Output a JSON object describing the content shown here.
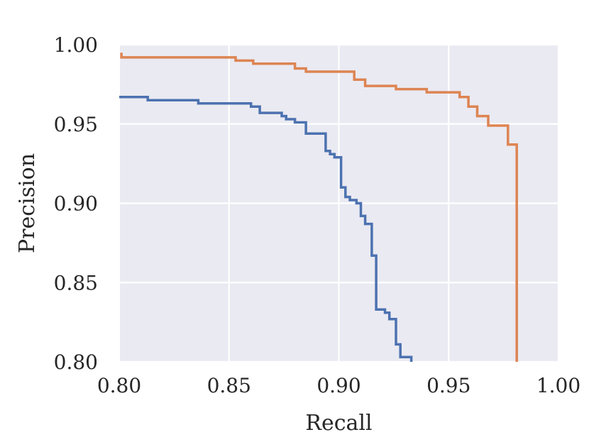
{
  "chart_data": {
    "type": "line",
    "title": "",
    "xlabel": "Recall",
    "ylabel": "Precision",
    "xlim": [
      0.8,
      1.0
    ],
    "ylim": [
      0.8,
      1.0
    ],
    "xticks": [
      "0.80",
      "0.85",
      "0.90",
      "0.95",
      "1.00"
    ],
    "yticks": [
      "0.80",
      "0.85",
      "0.90",
      "0.95",
      "1.00"
    ],
    "grid": true,
    "background": "#EAEAF2",
    "gridColor": "#FFFFFF",
    "legend": "none",
    "series": [
      {
        "color": "#4C72B0",
        "x": [
          0.8,
          0.813,
          0.813,
          0.836,
          0.836,
          0.86,
          0.86,
          0.864,
          0.864,
          0.874,
          0.874,
          0.876,
          0.876,
          0.88,
          0.88,
          0.885,
          0.885,
          0.894,
          0.894,
          0.896,
          0.896,
          0.898,
          0.898,
          0.901,
          0.901,
          0.903,
          0.903,
          0.905,
          0.905,
          0.908,
          0.908,
          0.91,
          0.91,
          0.912,
          0.912,
          0.915,
          0.915,
          0.917,
          0.917,
          0.921,
          0.921,
          0.923,
          0.923,
          0.926,
          0.926,
          0.928,
          0.928,
          0.933,
          0.933
        ],
        "y": [
          0.967,
          0.967,
          0.965,
          0.965,
          0.963,
          0.963,
          0.961,
          0.961,
          0.957,
          0.957,
          0.955,
          0.955,
          0.953,
          0.953,
          0.951,
          0.951,
          0.944,
          0.944,
          0.933,
          0.933,
          0.931,
          0.931,
          0.929,
          0.929,
          0.91,
          0.91,
          0.904,
          0.904,
          0.902,
          0.902,
          0.9,
          0.9,
          0.892,
          0.892,
          0.887,
          0.887,
          0.867,
          0.867,
          0.833,
          0.833,
          0.831,
          0.831,
          0.827,
          0.827,
          0.811,
          0.811,
          0.803,
          0.803,
          0.8
        ]
      },
      {
        "color": "#DD8452",
        "x": [
          0.801,
          0.801,
          0.853,
          0.853,
          0.861,
          0.861,
          0.88,
          0.88,
          0.885,
          0.885,
          0.907,
          0.907,
          0.912,
          0.912,
          0.926,
          0.926,
          0.94,
          0.94,
          0.955,
          0.955,
          0.959,
          0.959,
          0.963,
          0.963,
          0.968,
          0.968,
          0.977,
          0.977,
          0.981,
          0.981
        ],
        "y": [
          0.995,
          0.992,
          0.992,
          0.99,
          0.99,
          0.988,
          0.988,
          0.985,
          0.985,
          0.983,
          0.983,
          0.978,
          0.978,
          0.974,
          0.974,
          0.972,
          0.972,
          0.97,
          0.97,
          0.967,
          0.967,
          0.961,
          0.961,
          0.955,
          0.955,
          0.949,
          0.949,
          0.937,
          0.937,
          0.8
        ]
      }
    ]
  }
}
